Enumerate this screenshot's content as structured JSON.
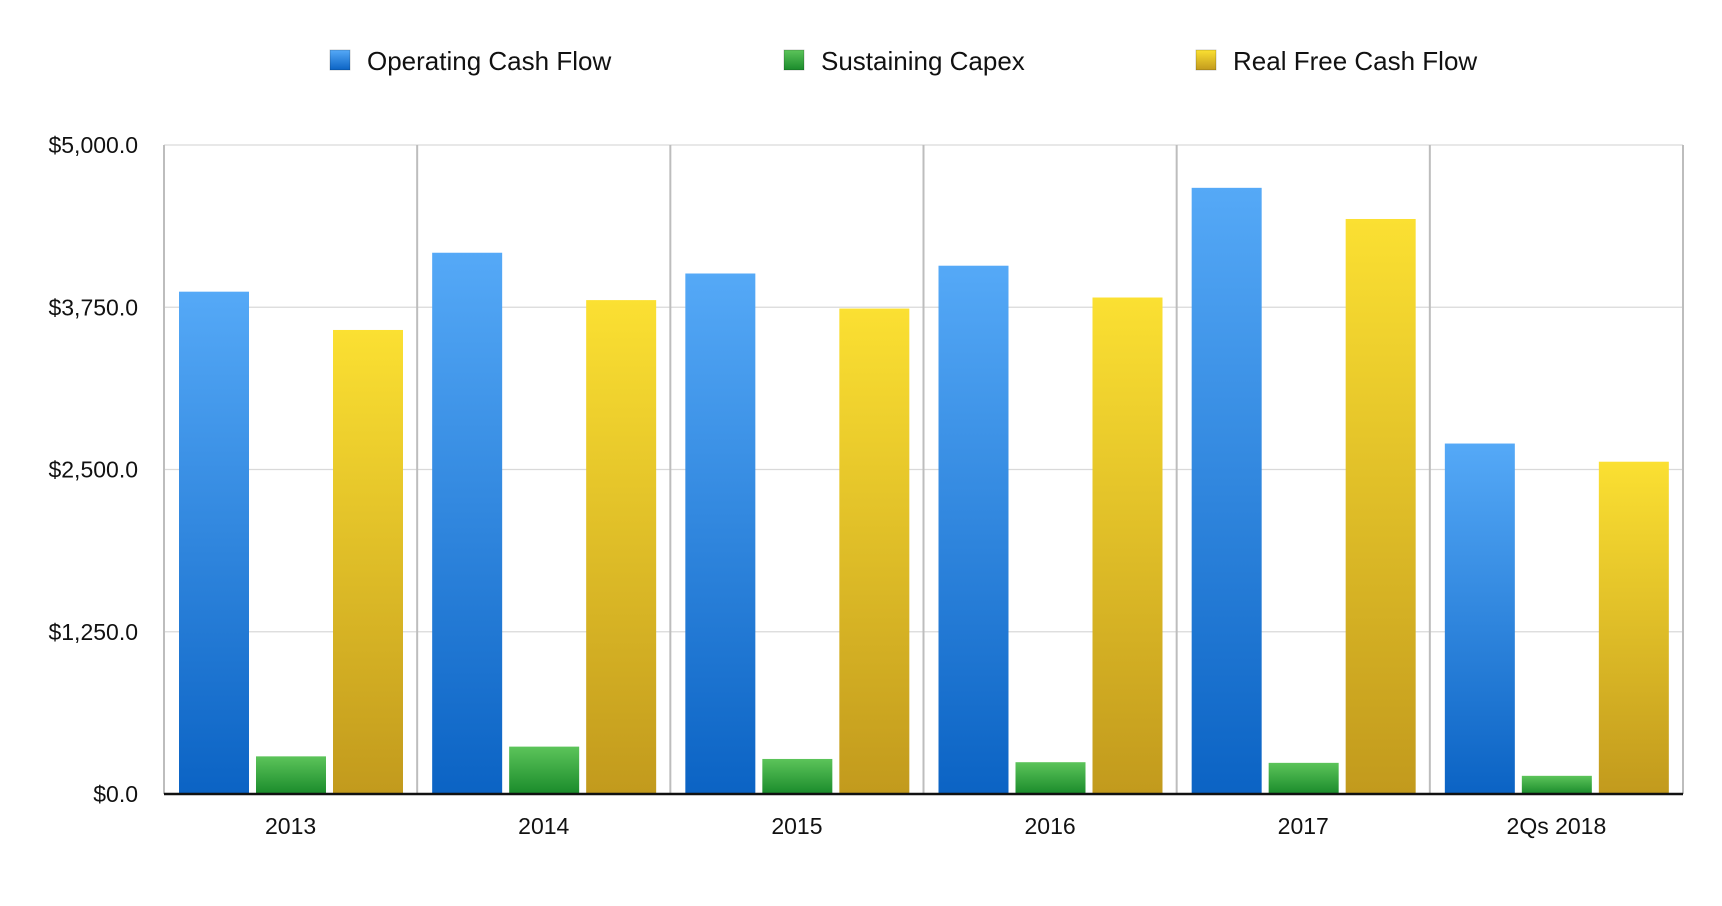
{
  "chart_data": {
    "type": "bar",
    "categories": [
      "2013",
      "2014",
      "2015",
      "2016",
      "2017",
      "2Qs 2018"
    ],
    "series": [
      {
        "name": "Operating Cash Flow",
        "values": [
          3870,
          4170,
          4010,
          4070,
          4670,
          2700
        ],
        "color": "#2f8ae6"
      },
      {
        "name": "Sustaining Capex",
        "values": [
          290,
          365,
          270,
          245,
          240,
          140
        ],
        "color": "#2fa83a"
      },
      {
        "name": "Real Free Cash Flow",
        "values": [
          3575,
          3805,
          3740,
          3825,
          4430,
          2560
        ],
        "color": "#e8c92a"
      }
    ],
    "ylim": [
      0,
      5000
    ],
    "yticks": [
      0,
      1250,
      2500,
      3750,
      5000
    ],
    "ytick_labels": [
      "$0.0",
      "$1,250.0",
      "$2,500.0",
      "$3,750.0",
      "$5,000.0"
    ],
    "grid": true,
    "legend_position": "top"
  }
}
